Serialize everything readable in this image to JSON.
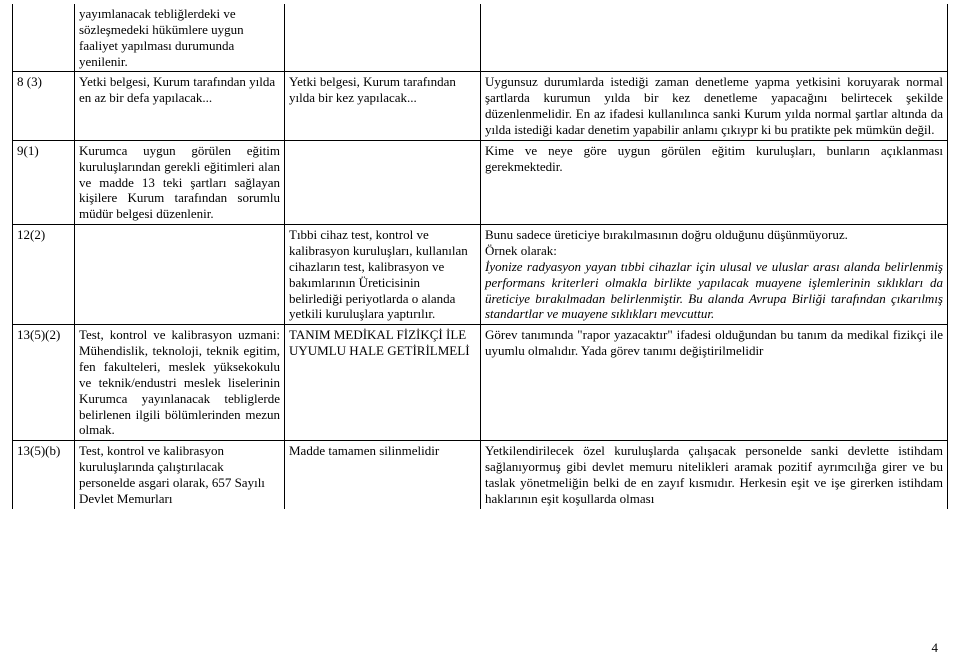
{
  "rows": {
    "r0": {
      "ref": "",
      "a": "yayımlanacak tebliğlerdeki ve sözleşmedeki hükümlere uygun faaliyet yapılması durumunda yenilenir.",
      "b": "",
      "c": ""
    },
    "r1": {
      "ref": "8 (3)",
      "a": "Yetki belgesi, Kurum tarafından yılda en az bir defa yapılacak...",
      "b": "Yetki belgesi, Kurum tarafından yılda bir kez yapılacak...",
      "c": "Uygunsuz durumlarda istediği zaman denetleme yapma yetkisini koruyarak normal şartlarda kurumun yılda bir kez denetleme yapacağını belirtecek şekilde düzenlenmelidir. En az ifadesi kullanılınca sanki Kurum yılda normal şartlar altında da yılda istediği kadar denetim yapabilir anlamı çıkıypr ki bu pratikte pek mümkün değil."
    },
    "r2": {
      "ref": "9(1)",
      "a": "Kurumca uygun görülen eğitim kuruluşlarından gerekli eğitimleri alan ve madde 13 teki şartları sağlayan kişilere Kurum tarafından sorumlu müdür belgesi düzenlenir.",
      "b": "",
      "c": "Kime ve neye göre uygun görülen eğitim kuruluşları, bunların açıklanması gerekmektedir."
    },
    "r3": {
      "ref": "12(2)",
      "a": "",
      "b": "Tıbbi cihaz test, kontrol ve kalibrasyon kuruluşları, kullanılan cihazların test, kalibrasyon ve bakımlarının Üreticisinin belirlediği periyotlarda o alanda yetkili kuruluşlara yaptırılır.",
      "c_plain": "Bunu sadece üreticiye bırakılmasının doğru olduğunu düşünmüyoruz.\nÖrnek olarak:",
      "c_italic": "İyonize radyasyon yayan tıbbi cihazlar için ulusal ve uluslar arası alanda belirlenmiş performans kriterleri olmakla birlikte yapılacak muayene işlemlerinin sıklıkları da üreticiye bırakılmadan belirlenmiştir. Bu alanda Avrupa Birliği tarafından çıkarılmış standartlar ve muayene sıklıkları mevcuttur."
    },
    "r4": {
      "ref": "13(5)(2)",
      "a": "Test, kontrol ve kalibrasyon uzmani: Mühendislik, teknoloji, teknik egitim, fen fakulteleri, meslek yüksekokulu ve teknik/endustri meslek liselerinin Kurumca yayınlanacak tebliglerde belirlenen ilgili bölümlerinden mezun olmak.",
      "b": "TANIM MEDİKAL FİZİKÇİ İLE UYUMLU HALE GETİRİLMELİ",
      "c": "Görev tanımında \"rapor yazacaktır\" ifadesi olduğundan bu tanım da medikal fizikçi ile uyumlu olmalıdır.  Yada görev tanımı değiştirilmelidir"
    },
    "r5": {
      "ref": "13(5)(b)",
      "a": "Test, kontrol ve kalibrasyon kuruluşlarında çalıştırılacak personelde asgari olarak, 657 Sayılı Devlet Memurları",
      "b": "Madde tamamen silinmelidir",
      "c": "Yetkilendirilecek özel kuruluşlarda çalışacak personelde sanki devlette istihdam sağlanıyormuş gibi devlet memuru nitelikleri aramak pozitif ayrımcılığa girer ve bu taslak yönetmeliğin belki de en zayıf kısmıdır. Herkesin eşit ve işe girerken istihdam haklarının eşit koşullarda olması"
    }
  },
  "page_number": "4"
}
